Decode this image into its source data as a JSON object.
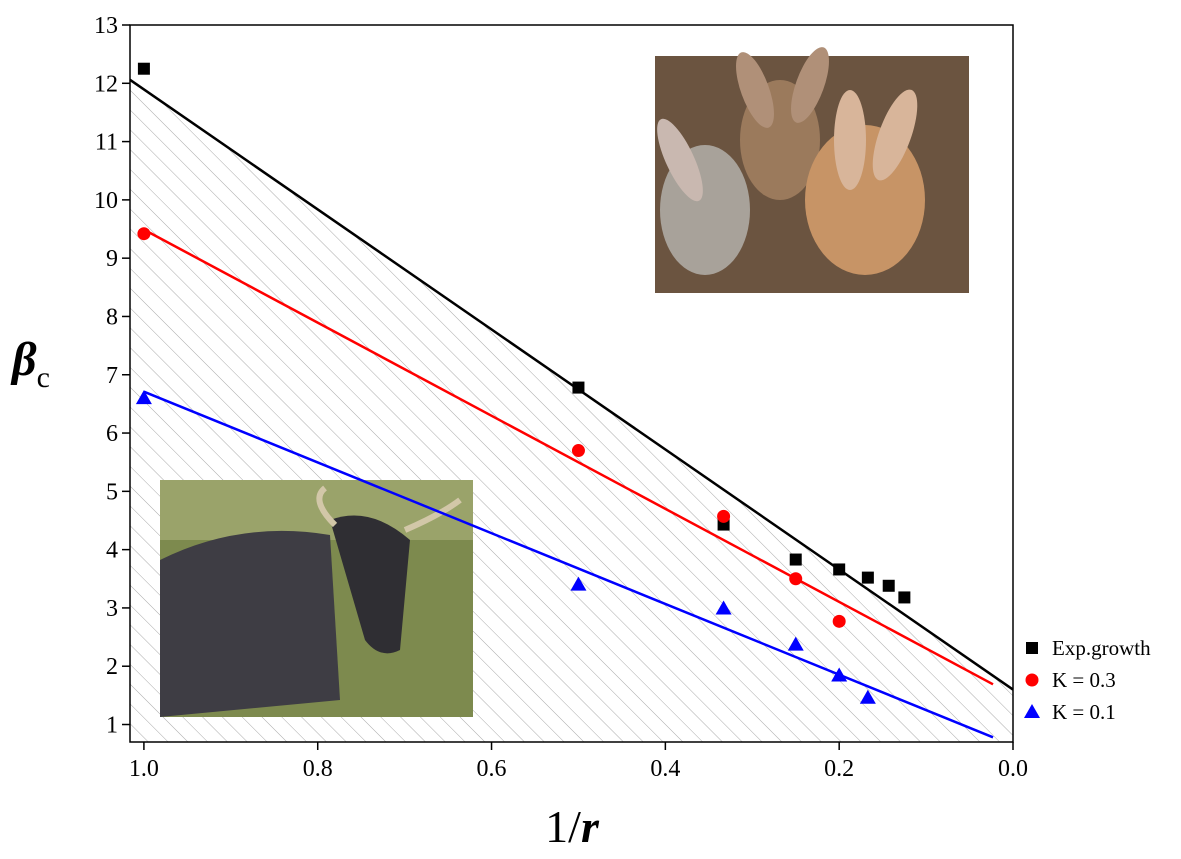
{
  "chart_data": {
    "type": "scatter",
    "xlabel": "1/",
    "xlabel_italic": "r",
    "ylabel": "β",
    "ylabel_subscript": "c",
    "xlim": [
      1.016,
      0
    ],
    "ylim": [
      0.7,
      13
    ],
    "xticks": [
      {
        "value": 1,
        "label": "1.0"
      },
      0.8,
      0.6,
      0.4,
      0.2,
      {
        "value": 0,
        "label": "0.0"
      }
    ],
    "yticks": [
      1,
      2,
      3,
      4,
      5,
      6,
      7,
      8,
      9,
      10,
      11,
      12,
      13
    ],
    "legend": "lower right",
    "series": [
      {
        "name": "Exp.growth",
        "color": "#000000",
        "marker": "square",
        "x": [
          1,
          0.5,
          0.333,
          0.25,
          0.2,
          0.167,
          0.143,
          0.125
        ],
        "values": [
          12.25,
          6.78,
          4.43,
          3.83,
          3.66,
          3.52,
          3.38,
          3.18
        ]
      },
      {
        "name": "K = 0.3",
        "color": "#ff0000",
        "marker": "circle",
        "x": [
          1,
          0.5,
          0.333,
          0.25,
          0.2
        ],
        "values": [
          9.42,
          5.7,
          4.57,
          3.5,
          2.77
        ]
      },
      {
        "name": "K = 0.1",
        "color": "#0000ff",
        "marker": "triangle",
        "x": [
          1,
          0.5,
          0.333,
          0.25,
          0.2,
          0.167
        ],
        "values": [
          6.6,
          3.4,
          2.99,
          2.37,
          1.84,
          1.46
        ]
      }
    ],
    "fit_lines": [
      {
        "color": "#000000",
        "x": [
          1.016,
          0
        ],
        "values": [
          12.06,
          1.6
        ]
      },
      {
        "color": "#ff0000",
        "x": [
          1,
          0.023
        ],
        "values": [
          9.49,
          1.69
        ]
      },
      {
        "color": "#0000ff",
        "x": [
          1,
          0.023
        ],
        "values": [
          6.71,
          0.78
        ]
      }
    ]
  }
}
